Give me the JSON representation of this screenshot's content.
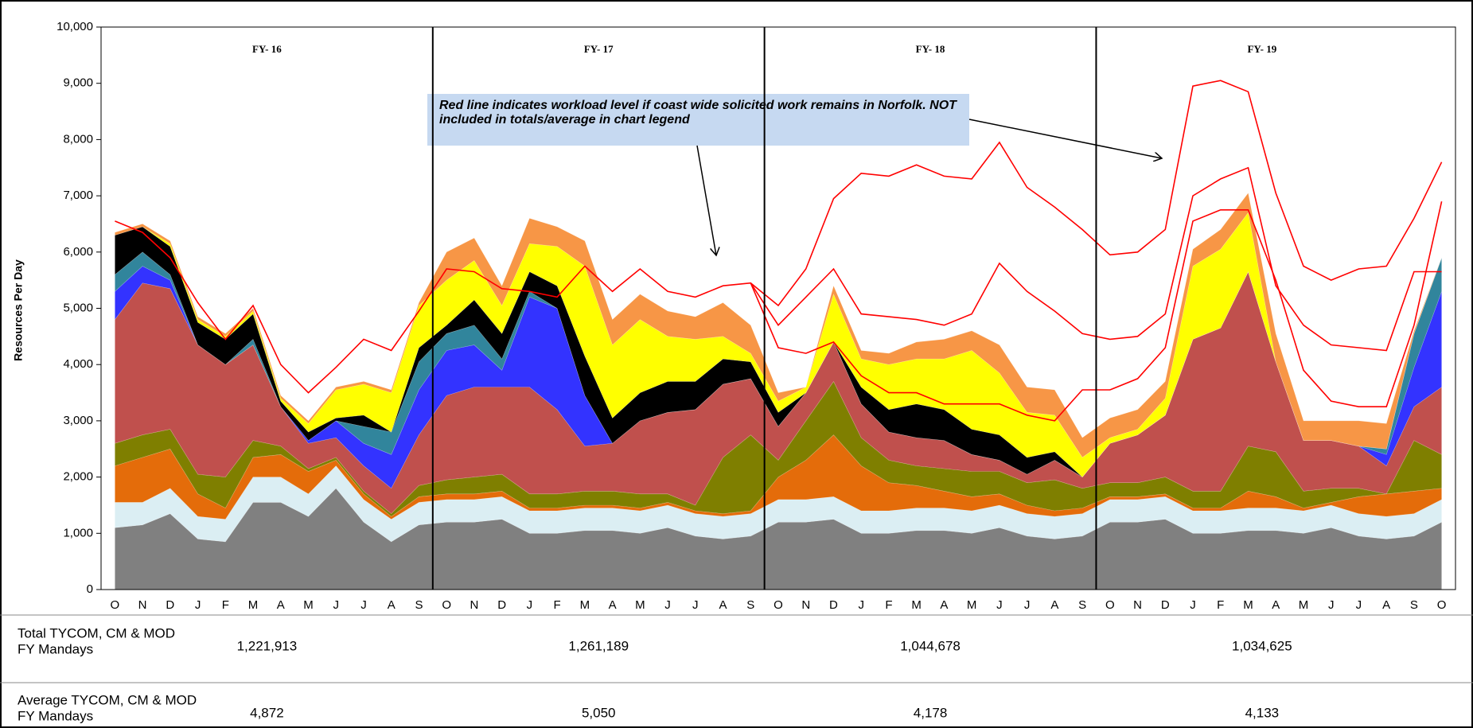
{
  "chart_data": {
    "type": "stacked_area",
    "y_label": "Resources Per Day",
    "categories": [
      "O",
      "N",
      "D",
      "J",
      "F",
      "M",
      "A",
      "M",
      "J",
      "J",
      "A",
      "S",
      "O",
      "N",
      "D",
      "J",
      "F",
      "M",
      "A",
      "M",
      "J",
      "J",
      "A",
      "S",
      "O",
      "N",
      "D",
      "J",
      "F",
      "M",
      "A",
      "M",
      "J",
      "J",
      "A",
      "S",
      "O",
      "N",
      "D",
      "J",
      "F",
      "M",
      "A",
      "M",
      "J",
      "J",
      "A",
      "S",
      "O"
    ],
    "ylim": [
      0,
      10000
    ],
    "yticks": [
      0,
      {
        "value": 1000,
        "label": "1,000"
      },
      {
        "value": 2000,
        "label": "2,000"
      },
      {
        "value": 3000,
        "label": "3,000"
      },
      {
        "value": 4000,
        "label": "4,000"
      },
      {
        "value": 5000,
        "label": "5,000"
      },
      {
        "value": 6000,
        "label": "6,000"
      },
      {
        "value": 7000,
        "label": "7,000"
      },
      {
        "value": 8000,
        "label": "8,000"
      },
      {
        "value": 9000,
        "label": "9,000"
      },
      {
        "value": 10000,
        "label": "10,000"
      }
    ],
    "periods": [
      "FY- 16",
      "FY- 17",
      "FY- 18",
      "FY- 19"
    ],
    "annotation": "Red line indicates workload level if coast wide solicited work remains in Norfolk.  NOT included in totals/average in chart legend",
    "series": [
      {
        "color": "#808080",
        "values": [
          1100,
          1150,
          1350,
          900,
          850,
          1550,
          1550,
          1300,
          1800,
          1200,
          850,
          1150,
          1200,
          1200,
          1250,
          1000,
          1000,
          1050,
          1050,
          1000,
          1100,
          950,
          900,
          950,
          1200,
          1200,
          1250,
          1000,
          1000,
          1050,
          1050,
          1000,
          1100,
          950,
          900,
          950,
          1200,
          1200,
          1250,
          1000,
          1000,
          1050,
          1050,
          1000,
          1100,
          950,
          900,
          950,
          1200
        ]
      },
      {
        "color": "#dbeef3",
        "values": [
          450,
          400,
          450,
          400,
          400,
          450,
          450,
          400,
          400,
          400,
          400,
          400,
          400,
          400,
          400,
          400,
          400,
          400,
          400,
          400,
          400,
          400,
          400,
          400,
          400,
          400,
          400,
          400,
          400,
          400,
          400,
          400,
          400,
          400,
          400,
          400,
          400,
          400,
          400,
          400,
          400,
          400,
          400,
          400,
          400,
          400,
          400,
          400,
          400
        ]
      },
      {
        "color": "#e46c0a",
        "values": [
          650,
          800,
          700,
          400,
          200,
          350,
          400,
          400,
          100,
          100,
          50,
          100,
          100,
          100,
          100,
          50,
          50,
          50,
          50,
          50,
          50,
          50,
          50,
          50,
          400,
          700,
          1100,
          800,
          500,
          400,
          300,
          250,
          200,
          150,
          100,
          100,
          50,
          50,
          50,
          50,
          50,
          300,
          200,
          50,
          50,
          300,
          400,
          400,
          200
        ]
      },
      {
        "color": "#7f7f00",
        "values": [
          400,
          400,
          350,
          350,
          550,
          300,
          150,
          50,
          50,
          50,
          50,
          200,
          250,
          300,
          300,
          250,
          250,
          250,
          250,
          250,
          150,
          100,
          1000,
          1350,
          300,
          700,
          950,
          500,
          400,
          350,
          400,
          450,
          400,
          400,
          550,
          350,
          250,
          250,
          300,
          300,
          300,
          800,
          800,
          300,
          250,
          150,
          0,
          900,
          600
        ]
      },
      {
        "color": "#c0504d",
        "values": [
          2200,
          2700,
          2500,
          2300,
          2000,
          1700,
          700,
          450,
          350,
          450,
          450,
          900,
          1500,
          1600,
          1550,
          1900,
          1500,
          800,
          850,
          1300,
          1450,
          1700,
          1300,
          1000,
          600,
          500,
          700,
          600,
          500,
          500,
          500,
          300,
          200,
          150,
          350,
          200,
          700,
          850,
          1100,
          2700,
          2900,
          3100,
          1600,
          900,
          850,
          750,
          500,
          600,
          1200
        ]
      },
      {
        "color": "#3333ff",
        "values": [
          500,
          300,
          150,
          0,
          0,
          0,
          0,
          50,
          300,
          400,
          600,
          800,
          800,
          750,
          300,
          1600,
          1800,
          900,
          0,
          0,
          0,
          0,
          0,
          0,
          0,
          0,
          0,
          0,
          0,
          0,
          0,
          0,
          0,
          0,
          0,
          0,
          0,
          0,
          0,
          0,
          0,
          0,
          0,
          0,
          0,
          0,
          200,
          700,
          1700
        ]
      },
      {
        "color": "#31859c",
        "values": [
          300,
          250,
          100,
          0,
          0,
          100,
          0,
          0,
          0,
          300,
          400,
          500,
          300,
          350,
          200,
          100,
          0,
          0,
          0,
          0,
          0,
          0,
          0,
          0,
          0,
          0,
          0,
          0,
          0,
          0,
          0,
          0,
          0,
          0,
          0,
          0,
          0,
          0,
          0,
          0,
          0,
          0,
          0,
          0,
          0,
          0,
          100,
          600,
          600
        ]
      },
      {
        "color": "#000000",
        "values": [
          700,
          450,
          500,
          400,
          450,
          450,
          100,
          150,
          50,
          200,
          0,
          250,
          150,
          450,
          450,
          350,
          400,
          700,
          450,
          500,
          550,
          500,
          450,
          300,
          250,
          0,
          0,
          300,
          400,
          600,
          550,
          450,
          450,
          300,
          150,
          0,
          0,
          0,
          0,
          0,
          0,
          0,
          0,
          0,
          0,
          0,
          0,
          0,
          0
        ]
      },
      {
        "color": "#ffff00",
        "values": [
          0,
          0,
          50,
          50,
          50,
          50,
          50,
          150,
          500,
          550,
          700,
          750,
          800,
          700,
          500,
          500,
          700,
          1600,
          1300,
          1300,
          800,
          750,
          400,
          150,
          200,
          100,
          850,
          500,
          800,
          800,
          900,
          1400,
          1100,
          800,
          650,
          350,
          100,
          100,
          300,
          1300,
          1400,
          1050,
          0,
          0,
          0,
          0,
          0,
          0,
          0
        ]
      },
      {
        "color": "#f79646",
        "values": [
          50,
          50,
          50,
          50,
          50,
          50,
          50,
          50,
          50,
          50,
          50,
          50,
          500,
          400,
          350,
          450,
          350,
          450,
          450,
          450,
          450,
          400,
          600,
          500,
          150,
          0,
          150,
          150,
          200,
          300,
          350,
          350,
          500,
          450,
          450,
          350,
          350,
          350,
          300,
          300,
          350,
          350,
          500,
          350,
          350,
          450,
          450,
          50,
          0
        ]
      }
    ],
    "lines": [
      {
        "color": "#ff0000",
        "values": [
          6550,
          6350,
          5900,
          5100,
          4450,
          5050,
          4000,
          3500,
          3950,
          4450,
          4250,
          4950,
          5700,
          5650,
          5350,
          5300,
          5200,
          5750,
          5300,
          5700,
          5300,
          5200,
          5400,
          5450,
          5050,
          5700,
          6950,
          7400,
          7350,
          7550,
          7350,
          7300,
          7950,
          7150,
          6800,
          6400,
          5950,
          6000,
          6400,
          8950,
          9050,
          8850,
          7050,
          5750,
          5500,
          5700,
          5750,
          6600,
          7600
        ]
      },
      {
        "color": "#ff0000",
        "values": [
          null,
          null,
          null,
          null,
          null,
          null,
          null,
          null,
          null,
          null,
          null,
          null,
          null,
          null,
          null,
          null,
          null,
          null,
          null,
          null,
          null,
          null,
          null,
          5450,
          4700,
          5200,
          5700,
          4900,
          4850,
          4800,
          4700,
          4900,
          5800,
          5300,
          4950,
          4550,
          4450,
          4500,
          4900,
          7000,
          7300,
          7500,
          5400,
          4700,
          4350,
          4300,
          4250,
          5650,
          5650
        ]
      },
      {
        "color": "#ff0000",
        "values": [
          null,
          null,
          null,
          null,
          null,
          null,
          null,
          null,
          null,
          null,
          null,
          null,
          null,
          null,
          null,
          null,
          null,
          null,
          null,
          null,
          null,
          null,
          null,
          5450,
          4300,
          4200,
          4400,
          3800,
          3500,
          3500,
          3300,
          3300,
          3300,
          3100,
          3000,
          3550,
          3550,
          3750,
          4300,
          6550,
          6750,
          6750,
          5500,
          3900,
          3350,
          3250,
          3250,
          4700,
          6900
        ]
      }
    ]
  },
  "table": {
    "row_labels": [
      [
        "Total  TYCOM, CM & MOD",
        "FY Mandays"
      ],
      [
        "Average TYCOM, CM & MOD",
        "FY Mandays"
      ]
    ],
    "rows": [
      [
        "1,221,913",
        "1,261,189",
        "1,044,678",
        "1,034,625"
      ],
      [
        "4,872",
        "5,050",
        "4,178",
        "4,133"
      ]
    ]
  }
}
